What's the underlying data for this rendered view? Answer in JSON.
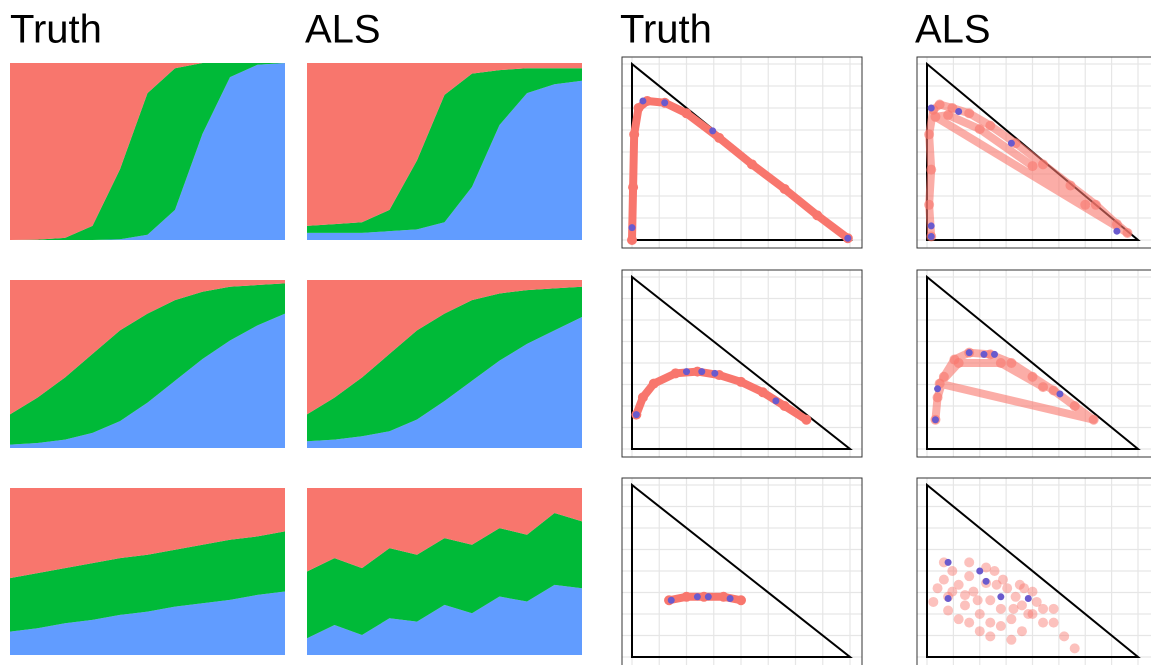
{
  "chart_data": [
    {
      "type": "area",
      "title": "Truth",
      "ylim": [
        0,
        1
      ],
      "series": [
        {
          "color": "#619cff",
          "values": [
            0,
            0,
            0,
            0,
            0.004,
            0.03,
            0.17,
            0.6,
            0.92,
            0.99,
            1
          ]
        },
        {
          "color": "#00ba38",
          "values": [
            0,
            0.002,
            0.012,
            0.08,
            0.396,
            0.8,
            0.8,
            0.4,
            0.08,
            0.01,
            0
          ]
        },
        {
          "color": "#f8766d",
          "values": [
            1,
            0.998,
            0.988,
            0.92,
            0.6,
            0.17,
            0.03,
            0,
            0,
            0,
            0
          ]
        }
      ]
    },
    {
      "type": "area",
      "title": "ALS",
      "ylim": [
        0,
        1
      ],
      "series": [
        {
          "color": "#619cff",
          "values": [
            0.04,
            0.04,
            0.04,
            0.05,
            0.06,
            0.1,
            0.3,
            0.65,
            0.83,
            0.88,
            0.9
          ]
        },
        {
          "color": "#00ba38",
          "values": [
            0.04,
            0.05,
            0.06,
            0.12,
            0.39,
            0.72,
            0.64,
            0.31,
            0.14,
            0.09,
            0.07
          ]
        },
        {
          "color": "#f8766d",
          "values": [
            0.92,
            0.91,
            0.9,
            0.83,
            0.55,
            0.18,
            0.06,
            0.04,
            0.03,
            0.03,
            0.03
          ]
        }
      ]
    },
    {
      "type": "scatter",
      "title": "Truth",
      "xlim": [
        0,
        1
      ],
      "ylim": [
        0,
        1
      ],
      "xticks": [
        0,
        0.125,
        0.25,
        0.375,
        0.5,
        0.625,
        0.75,
        0.875,
        1
      ],
      "yticks": [
        0,
        0.125,
        0.25,
        0.375,
        0.5,
        0.625,
        0.75,
        0.875,
        1
      ],
      "grid": true,
      "series": [
        {
          "color": "#f8766d",
          "line": true,
          "x": [
            0,
            0.005,
            0.01,
            0.03,
            0.07,
            0.15,
            0.25,
            0.4,
            0.55,
            0.7,
            0.85,
            0.99
          ],
          "values": [
            0,
            0.3,
            0.6,
            0.75,
            0.79,
            0.78,
            0.72,
            0.58,
            0.43,
            0.29,
            0.14,
            0.01
          ]
        },
        {
          "color": "#6a5acd",
          "x": [
            0,
            0.05,
            0.15,
            0.37,
            0.99
          ],
          "values": [
            0.07,
            0.79,
            0.78,
            0.62,
            0.01
          ]
        }
      ]
    },
    {
      "type": "scatter",
      "title": "ALS",
      "xlim": [
        0,
        1
      ],
      "ylim": [
        0,
        1
      ],
      "xticks": [
        0,
        0.125,
        0.25,
        0.375,
        0.5,
        0.625,
        0.75,
        0.875,
        1
      ],
      "yticks": [
        0,
        0.125,
        0.25,
        0.375,
        0.5,
        0.625,
        0.75,
        0.875,
        1
      ],
      "grid": true,
      "series": [
        {
          "color": "#f8766d",
          "line": true,
          "opacity": 0.6,
          "x": [
            0.02,
            0.01,
            0.02,
            0.01,
            0.03,
            0.06,
            0.12,
            0.2,
            0.3,
            0.42,
            0.55,
            0.68,
            0.8,
            0.9,
            0.95,
            0.04,
            0.1,
            0.25,
            0.5,
            0.75
          ],
          "values": [
            0.02,
            0.2,
            0.4,
            0.6,
            0.74,
            0.77,
            0.75,
            0.72,
            0.65,
            0.55,
            0.43,
            0.31,
            0.2,
            0.09,
            0.04,
            0.7,
            0.71,
            0.63,
            0.42,
            0.2
          ]
        },
        {
          "color": "#6a5acd",
          "x": [
            0.02,
            0.02,
            0.02,
            0.15,
            0.4,
            0.9
          ],
          "values": [
            0.02,
            0.08,
            0.75,
            0.73,
            0.55,
            0.05
          ]
        }
      ]
    },
    {
      "type": "area",
      "title": null,
      "ylim": [
        0,
        1
      ],
      "series": [
        {
          "color": "#619cff",
          "values": [
            0.02,
            0.03,
            0.05,
            0.09,
            0.16,
            0.27,
            0.4,
            0.53,
            0.64,
            0.73,
            0.8
          ]
        },
        {
          "color": "#00ba38",
          "values": [
            0.18,
            0.27,
            0.37,
            0.47,
            0.54,
            0.53,
            0.48,
            0.4,
            0.32,
            0.24,
            0.18
          ]
        },
        {
          "color": "#f8766d",
          "values": [
            0.8,
            0.7,
            0.58,
            0.44,
            0.3,
            0.2,
            0.12,
            0.07,
            0.04,
            0.03,
            0.02
          ]
        }
      ]
    },
    {
      "type": "area",
      "title": null,
      "ylim": [
        0,
        1
      ],
      "series": [
        {
          "color": "#619cff",
          "values": [
            0.04,
            0.05,
            0.07,
            0.1,
            0.17,
            0.28,
            0.4,
            0.52,
            0.62,
            0.7,
            0.78
          ]
        },
        {
          "color": "#00ba38",
          "values": [
            0.16,
            0.25,
            0.35,
            0.46,
            0.53,
            0.52,
            0.48,
            0.4,
            0.32,
            0.25,
            0.18
          ]
        },
        {
          "color": "#f8766d",
          "values": [
            0.8,
            0.7,
            0.58,
            0.44,
            0.3,
            0.2,
            0.12,
            0.08,
            0.06,
            0.05,
            0.04
          ]
        }
      ]
    },
    {
      "type": "scatter",
      "title": null,
      "xlim": [
        0,
        1
      ],
      "ylim": [
        0,
        1
      ],
      "xticks": [
        0,
        0.125,
        0.25,
        0.375,
        0.5,
        0.625,
        0.75,
        0.875,
        1
      ],
      "yticks": [
        0,
        0.125,
        0.25,
        0.375,
        0.5,
        0.625,
        0.75,
        0.875,
        1
      ],
      "grid": true,
      "series": [
        {
          "color": "#f8766d",
          "line": true,
          "x": [
            0.02,
            0.05,
            0.1,
            0.2,
            0.3,
            0.4,
            0.5,
            0.6,
            0.7,
            0.8
          ],
          "values": [
            0.2,
            0.3,
            0.38,
            0.44,
            0.45,
            0.43,
            0.39,
            0.33,
            0.25,
            0.17
          ]
        },
        {
          "color": "#6a5acd",
          "x": [
            0.02,
            0.25,
            0.32,
            0.38,
            0.66
          ],
          "values": [
            0.2,
            0.45,
            0.45,
            0.44,
            0.28
          ]
        }
      ]
    },
    {
      "type": "scatter",
      "title": null,
      "xlim": [
        0,
        1
      ],
      "ylim": [
        0,
        1
      ],
      "xticks": [
        0,
        0.125,
        0.25,
        0.375,
        0.5,
        0.625,
        0.75,
        0.875,
        1
      ],
      "yticks": [
        0,
        0.125,
        0.25,
        0.375,
        0.5,
        0.625,
        0.75,
        0.875,
        1
      ],
      "grid": true,
      "series": [
        {
          "color": "#f8766d",
          "line": true,
          "opacity": 0.6,
          "x": [
            0.04,
            0.05,
            0.08,
            0.13,
            0.2,
            0.3,
            0.4,
            0.5,
            0.6,
            0.7,
            0.79,
            0.06,
            0.15,
            0.35,
            0.55
          ],
          "values": [
            0.17,
            0.3,
            0.42,
            0.52,
            0.56,
            0.55,
            0.5,
            0.42,
            0.34,
            0.25,
            0.17,
            0.38,
            0.5,
            0.5,
            0.36
          ]
        },
        {
          "color": "#6a5acd",
          "x": [
            0.04,
            0.05,
            0.2,
            0.27,
            0.32,
            0.63
          ],
          "values": [
            0.17,
            0.35,
            0.56,
            0.55,
            0.55,
            0.32
          ]
        }
      ]
    },
    {
      "type": "area",
      "title": null,
      "ylim": [
        0,
        1
      ],
      "series": [
        {
          "color": "#619cff",
          "values": [
            0.14,
            0.16,
            0.19,
            0.21,
            0.24,
            0.26,
            0.29,
            0.31,
            0.33,
            0.36,
            0.38
          ]
        },
        {
          "color": "#00ba38",
          "values": [
            0.32,
            0.33,
            0.33,
            0.34,
            0.34,
            0.34,
            0.34,
            0.35,
            0.36,
            0.35,
            0.36
          ]
        },
        {
          "color": "#f8766d",
          "values": [
            0.54,
            0.51,
            0.48,
            0.45,
            0.42,
            0.4,
            0.37,
            0.34,
            0.31,
            0.29,
            0.26
          ]
        }
      ]
    },
    {
      "type": "area",
      "title": null,
      "ylim": [
        0,
        1
      ],
      "series": [
        {
          "color": "#619cff",
          "values": [
            0.1,
            0.18,
            0.12,
            0.22,
            0.2,
            0.3,
            0.25,
            0.35,
            0.32,
            0.42,
            0.4
          ]
        },
        {
          "color": "#00ba38",
          "values": [
            0.4,
            0.4,
            0.4,
            0.42,
            0.4,
            0.4,
            0.41,
            0.41,
            0.4,
            0.43,
            0.4
          ]
        },
        {
          "color": "#f8766d",
          "values": [
            0.5,
            0.42,
            0.48,
            0.36,
            0.4,
            0.3,
            0.34,
            0.24,
            0.28,
            0.15,
            0.2
          ]
        }
      ]
    },
    {
      "type": "scatter",
      "title": null,
      "xlim": [
        0,
        1
      ],
      "ylim": [
        0,
        1
      ],
      "xticks": [
        0,
        0.125,
        0.25,
        0.375,
        0.5,
        0.625,
        0.75,
        0.875,
        1
      ],
      "yticks": [
        0,
        0.125,
        0.25,
        0.375,
        0.5,
        0.625,
        0.75,
        0.875,
        1
      ],
      "grid": true,
      "series": [
        {
          "color": "#f8766d",
          "line": true,
          "x": [
            0.17,
            0.25,
            0.33,
            0.42,
            0.5
          ],
          "values": [
            0.33,
            0.35,
            0.35,
            0.35,
            0.33
          ]
        },
        {
          "color": "#6a5acd",
          "x": [
            0.18,
            0.3,
            0.35,
            0.45
          ],
          "values": [
            0.33,
            0.35,
            0.35,
            0.34
          ]
        }
      ]
    },
    {
      "type": "scatter",
      "title": null,
      "xlim": [
        0,
        1
      ],
      "ylim": [
        0,
        1
      ],
      "xticks": [
        0,
        0.125,
        0.25,
        0.375,
        0.5,
        0.625,
        0.75,
        0.875,
        1
      ],
      "yticks": [
        0,
        0.125,
        0.25,
        0.375,
        0.5,
        0.625,
        0.75,
        0.875,
        1
      ],
      "grid": true,
      "series": [
        {
          "color": "#f8766d",
          "opacity": 0.45,
          "x": [
            0.05,
            0.08,
            0.1,
            0.12,
            0.15,
            0.18,
            0.2,
            0.22,
            0.25,
            0.28,
            0.3,
            0.32,
            0.35,
            0.38,
            0.4,
            0.42,
            0.45,
            0.48,
            0.5,
            0.55,
            0.6,
            0.65,
            0.1,
            0.15,
            0.2,
            0.25,
            0.3,
            0.35,
            0.4,
            0.45,
            0.5,
            0.55,
            0.2,
            0.28,
            0.36,
            0.44,
            0.52,
            0.6,
            0.7,
            0.03,
            0.12,
            0.24,
            0.33,
            0.41,
            0.08,
            0.18,
            0.3,
            0.46
          ],
          "values": [
            0.4,
            0.45,
            0.35,
            0.5,
            0.42,
            0.3,
            0.47,
            0.38,
            0.25,
            0.43,
            0.33,
            0.5,
            0.28,
            0.4,
            0.22,
            0.35,
            0.3,
            0.25,
            0.38,
            0.28,
            0.2,
            0.12,
            0.27,
            0.22,
            0.2,
            0.15,
            0.12,
            0.18,
            0.1,
            0.15,
            0.25,
            0.2,
            0.55,
            0.52,
            0.45,
            0.42,
            0.32,
            0.28,
            0.05,
            0.32,
            0.38,
            0.33,
            0.42,
            0.28,
            0.55,
            0.36,
            0.2,
            0.4
          ]
        },
        {
          "color": "#6a5acd",
          "x": [
            0.1,
            0.25,
            0.28,
            0.35,
            0.48,
            0.1
          ],
          "values": [
            0.34,
            0.5,
            0.44,
            0.35,
            0.34,
            0.55
          ]
        }
      ]
    }
  ]
}
